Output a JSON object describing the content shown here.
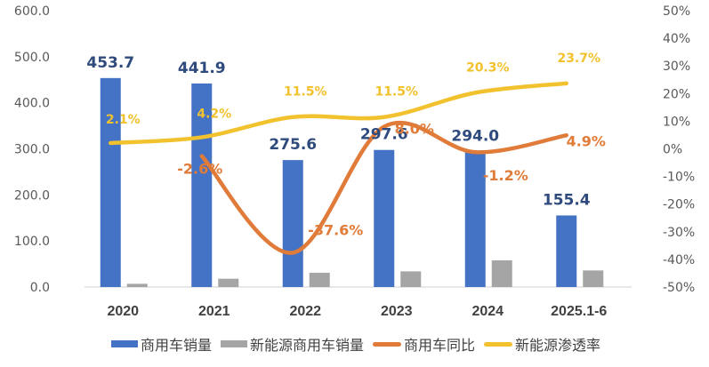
{
  "chart_data": {
    "type": "bar+line",
    "categories": [
      "2020",
      "2021",
      "2022",
      "2023",
      "2024",
      "2025.1-6"
    ],
    "left_axis": {
      "ylim": [
        0,
        600
      ],
      "ticks": [
        "0.0",
        "100.0",
        "200.0",
        "300.0",
        "400.0",
        "500.0",
        "600.0"
      ],
      "tick_values": [
        0,
        100,
        200,
        300,
        400,
        500,
        600
      ]
    },
    "right_axis": {
      "ylim": [
        -50,
        50
      ],
      "ticks": [
        "-50%",
        "-40%",
        "-30%",
        "-20%",
        "-10%",
        "0%",
        "10%",
        "20%",
        "30%",
        "40%",
        "50%"
      ],
      "tick_values": [
        -50,
        -40,
        -30,
        -20,
        -10,
        0,
        10,
        20,
        30,
        40,
        50
      ]
    },
    "series": [
      {
        "name": "商用车销量",
        "type": "bar",
        "axis": "left",
        "color": "#4472c4",
        "values": [
          453.7,
          441.9,
          275.6,
          297.6,
          294.0,
          155.4
        ],
        "labels": [
          "453.7",
          "441.9",
          "275.6",
          "297.6",
          "294.0",
          "155.4"
        ]
      },
      {
        "name": "新能源商用车销量",
        "type": "bar",
        "axis": "left",
        "color": "#a5a5a5",
        "values": [
          7,
          18,
          31,
          34,
          58,
          36
        ],
        "labels": []
      },
      {
        "name": "商用车同比",
        "type": "line",
        "axis": "right",
        "color": "#e07b39",
        "values": [
          null,
          -2.6,
          -37.6,
          8.0,
          -1.2,
          4.9
        ],
        "labels": [
          "",
          "-2.6%",
          "-37.6%",
          "8.0%",
          "-1.2%",
          "4.9%"
        ]
      },
      {
        "name": "新能源渗透率",
        "type": "line",
        "axis": "right",
        "color": "#f2c12e",
        "values": [
          2.1,
          4.2,
          11.5,
          11.5,
          20.3,
          23.7
        ],
        "labels": [
          "2.1%",
          "4.2%",
          "11.5%",
          "11.5%",
          "20.3%",
          "23.7%"
        ]
      }
    ],
    "legend_position": "bottom",
    "grid": false
  }
}
